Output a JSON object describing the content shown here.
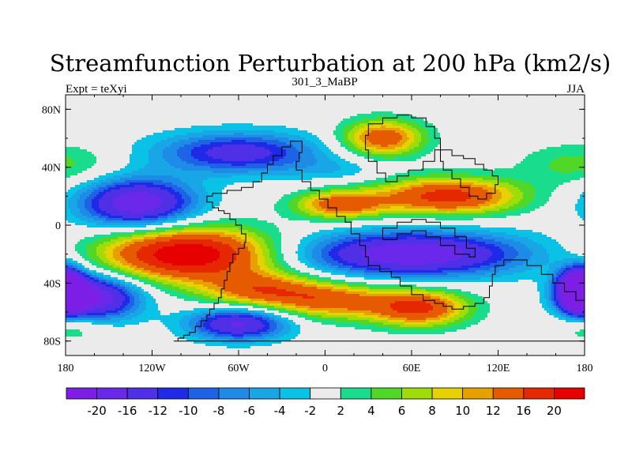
{
  "chart_data": {
    "type": "heatmap",
    "title": "Streamfunction Perturbation at 200 hPa (km2/s)",
    "left_label": "Expt = teXyi",
    "center_label": "301_3_MaBP",
    "right_label": "JJA",
    "x_range": [
      -180,
      180
    ],
    "y_range": [
      -90,
      90
    ],
    "x_ticks": [
      {
        "value": -180,
        "label": "180"
      },
      {
        "value": -120,
        "label": "120W"
      },
      {
        "value": -60,
        "label": "60W"
      },
      {
        "value": 0,
        "label": "0"
      },
      {
        "value": 60,
        "label": "60E"
      },
      {
        "value": 120,
        "label": "120E"
      },
      {
        "value": 180,
        "label": "180"
      }
    ],
    "y_ticks": [
      {
        "value": 80,
        "label": "80N"
      },
      {
        "value": 40,
        "label": "40N"
      },
      {
        "value": 0,
        "label": "0"
      },
      {
        "value": -40,
        "label": "40S"
      },
      {
        "value": -80,
        "label": "80S"
      }
    ],
    "colorbar": {
      "levels": [
        "-20",
        "-16",
        "-12",
        "-10",
        "-8",
        "-6",
        "-4",
        "-2",
        "2",
        "4",
        "6",
        "8",
        "10",
        "12",
        "16",
        "20"
      ],
      "colors": [
        "#7d1ee6",
        "#6a28eb",
        "#5030e6",
        "#1e2ae6",
        "#1e62e6",
        "#1e8ce6",
        "#19a6e6",
        "#0ac2e6",
        "#ebebeb",
        "#19dc8c",
        "#50d728",
        "#a0dc0a",
        "#e6d200",
        "#e6a000",
        "#e65a00",
        "#e62800",
        "#e60000"
      ]
    },
    "highs": [
      {
        "lon": -95,
        "lat": -20,
        "amp": 24,
        "sx": 42,
        "sy": 13
      },
      {
        "lon": -45,
        "lat": -45,
        "amp": 13,
        "sx": 28,
        "sy": 9
      },
      {
        "lon": 5,
        "lat": -52,
        "amp": 13,
        "sx": 28,
        "sy": 9
      },
      {
        "lon": 65,
        "lat": -57,
        "amp": 17,
        "sx": 24,
        "sy": 9
      },
      {
        "lon": 85,
        "lat": 20,
        "amp": 18,
        "sx": 35,
        "sy": 9
      },
      {
        "lon": 10,
        "lat": 14,
        "amp": 14,
        "sx": 22,
        "sy": 7
      },
      {
        "lon": 40,
        "lat": 60,
        "amp": 15,
        "sx": 20,
        "sy": 9
      },
      {
        "lon": 175,
        "lat": 42,
        "amp": 5,
        "sx": 28,
        "sy": 10
      },
      {
        "lon": -175,
        "lat": -70,
        "amp": 5,
        "sx": 18,
        "sy": 7
      }
    ],
    "lows": [
      {
        "lon": -130,
        "lat": 15,
        "amp": 20,
        "sx": 28,
        "sy": 12
      },
      {
        "lon": -60,
        "lat": 50,
        "amp": 14,
        "sx": 40,
        "sy": 10
      },
      {
        "lon": 10,
        "lat": 38,
        "amp": 3,
        "sx": 25,
        "sy": 6
      },
      {
        "lon": 60,
        "lat": -20,
        "amp": 20,
        "sx": 55,
        "sy": 11
      },
      {
        "lon": -160,
        "lat": -50,
        "amp": 20,
        "sx": 22,
        "sy": 11
      },
      {
        "lon": -60,
        "lat": -68,
        "amp": 17,
        "sx": 24,
        "sy": 8
      },
      {
        "lon": 175,
        "lat": -45,
        "amp": 20,
        "sx": 10,
        "sy": 10
      },
      {
        "lon": -180,
        "lat": -45,
        "amp": 20,
        "sx": 10,
        "sy": 10
      }
    ],
    "base": {
      "lon": 0,
      "lat": 0,
      "amp": 0
    },
    "coastline": [
      [
        -105,
        -80
      ],
      [
        -102,
        -78
      ],
      [
        -98,
        -76
      ],
      [
        -94,
        -74
      ],
      [
        -90,
        -70
      ],
      [
        -86,
        -66
      ],
      [
        -82,
        -62
      ],
      [
        -80,
        -58
      ],
      [
        -77,
        -54
      ],
      [
        -74,
        -50
      ],
      [
        -72,
        -44
      ],
      [
        -70,
        -38
      ],
      [
        -68,
        -32
      ],
      [
        -66,
        -26
      ],
      [
        -64,
        -20
      ],
      [
        -60,
        -16
      ],
      [
        -56,
        -12
      ],
      [
        -55,
        -6
      ],
      [
        -58,
        0
      ],
      [
        -62,
        4
      ],
      [
        -66,
        8
      ],
      [
        -70,
        10
      ],
      [
        -74,
        12
      ],
      [
        -78,
        16
      ],
      [
        -82,
        20
      ],
      [
        -78,
        22
      ],
      [
        -68,
        24
      ],
      [
        -58,
        26
      ],
      [
        -50,
        30
      ],
      [
        -44,
        36
      ],
      [
        -40,
        42
      ],
      [
        -36,
        48
      ],
      [
        -30,
        54
      ],
      [
        -24,
        58
      ],
      [
        -17,
        58
      ],
      [
        -16,
        50
      ],
      [
        -18,
        44
      ],
      [
        -20,
        38
      ],
      [
        -16,
        30
      ],
      [
        -10,
        24
      ],
      [
        -4,
        18
      ],
      [
        2,
        12
      ],
      [
        8,
        6
      ],
      [
        14,
        2
      ],
      [
        18,
        -6
      ],
      [
        24,
        -14
      ],
      [
        28,
        -22
      ],
      [
        30,
        -28
      ],
      [
        38,
        -32
      ],
      [
        46,
        -36
      ],
      [
        52,
        -42
      ],
      [
        60,
        -48
      ],
      [
        68,
        -52
      ],
      [
        76,
        -54
      ],
      [
        82,
        -56
      ],
      [
        88,
        -58
      ],
      [
        96,
        -56
      ],
      [
        104,
        -54
      ],
      [
        110,
        -50
      ],
      [
        114,
        -42
      ],
      [
        116,
        -34
      ],
      [
        118,
        -28
      ],
      [
        124,
        -24
      ],
      [
        132,
        -24
      ],
      [
        140,
        -28
      ],
      [
        150,
        -34
      ],
      [
        158,
        -40
      ],
      [
        166,
        -46
      ],
      [
        174,
        -52
      ],
      [
        180,
        -58
      ],
      [
        180,
        -80
      ],
      [
        -105,
        -80
      ]
    ],
    "land_interior": [
      [
        30,
        70
      ],
      [
        40,
        74
      ],
      [
        50,
        76
      ],
      [
        60,
        74
      ],
      [
        70,
        68
      ],
      [
        76,
        60
      ],
      [
        80,
        52
      ],
      [
        76,
        44
      ],
      [
        68,
        38
      ],
      [
        58,
        34
      ],
      [
        50,
        30
      ],
      [
        42,
        36
      ],
      [
        36,
        44
      ],
      [
        30,
        52
      ],
      [
        28,
        62
      ],
      [
        30,
        70
      ]
    ],
    "asia": [
      [
        80,
        52
      ],
      [
        88,
        48
      ],
      [
        96,
        46
      ],
      [
        104,
        42
      ],
      [
        110,
        38
      ],
      [
        116,
        34
      ],
      [
        120,
        28
      ],
      [
        118,
        22
      ],
      [
        112,
        18
      ],
      [
        106,
        20
      ],
      [
        100,
        26
      ],
      [
        94,
        32
      ],
      [
        88,
        38
      ],
      [
        82,
        44
      ],
      [
        80,
        52
      ]
    ],
    "eq_islands": [
      [
        40,
        -10
      ],
      [
        50,
        -6
      ],
      [
        60,
        -4
      ],
      [
        70,
        -8
      ],
      [
        80,
        -14
      ],
      [
        90,
        -20
      ],
      [
        100,
        -22
      ],
      [
        104,
        -16
      ],
      [
        98,
        -8
      ],
      [
        90,
        -2
      ],
      [
        80,
        2
      ],
      [
        70,
        4
      ],
      [
        60,
        2
      ],
      [
        50,
        -2
      ],
      [
        40,
        -10
      ]
    ]
  }
}
